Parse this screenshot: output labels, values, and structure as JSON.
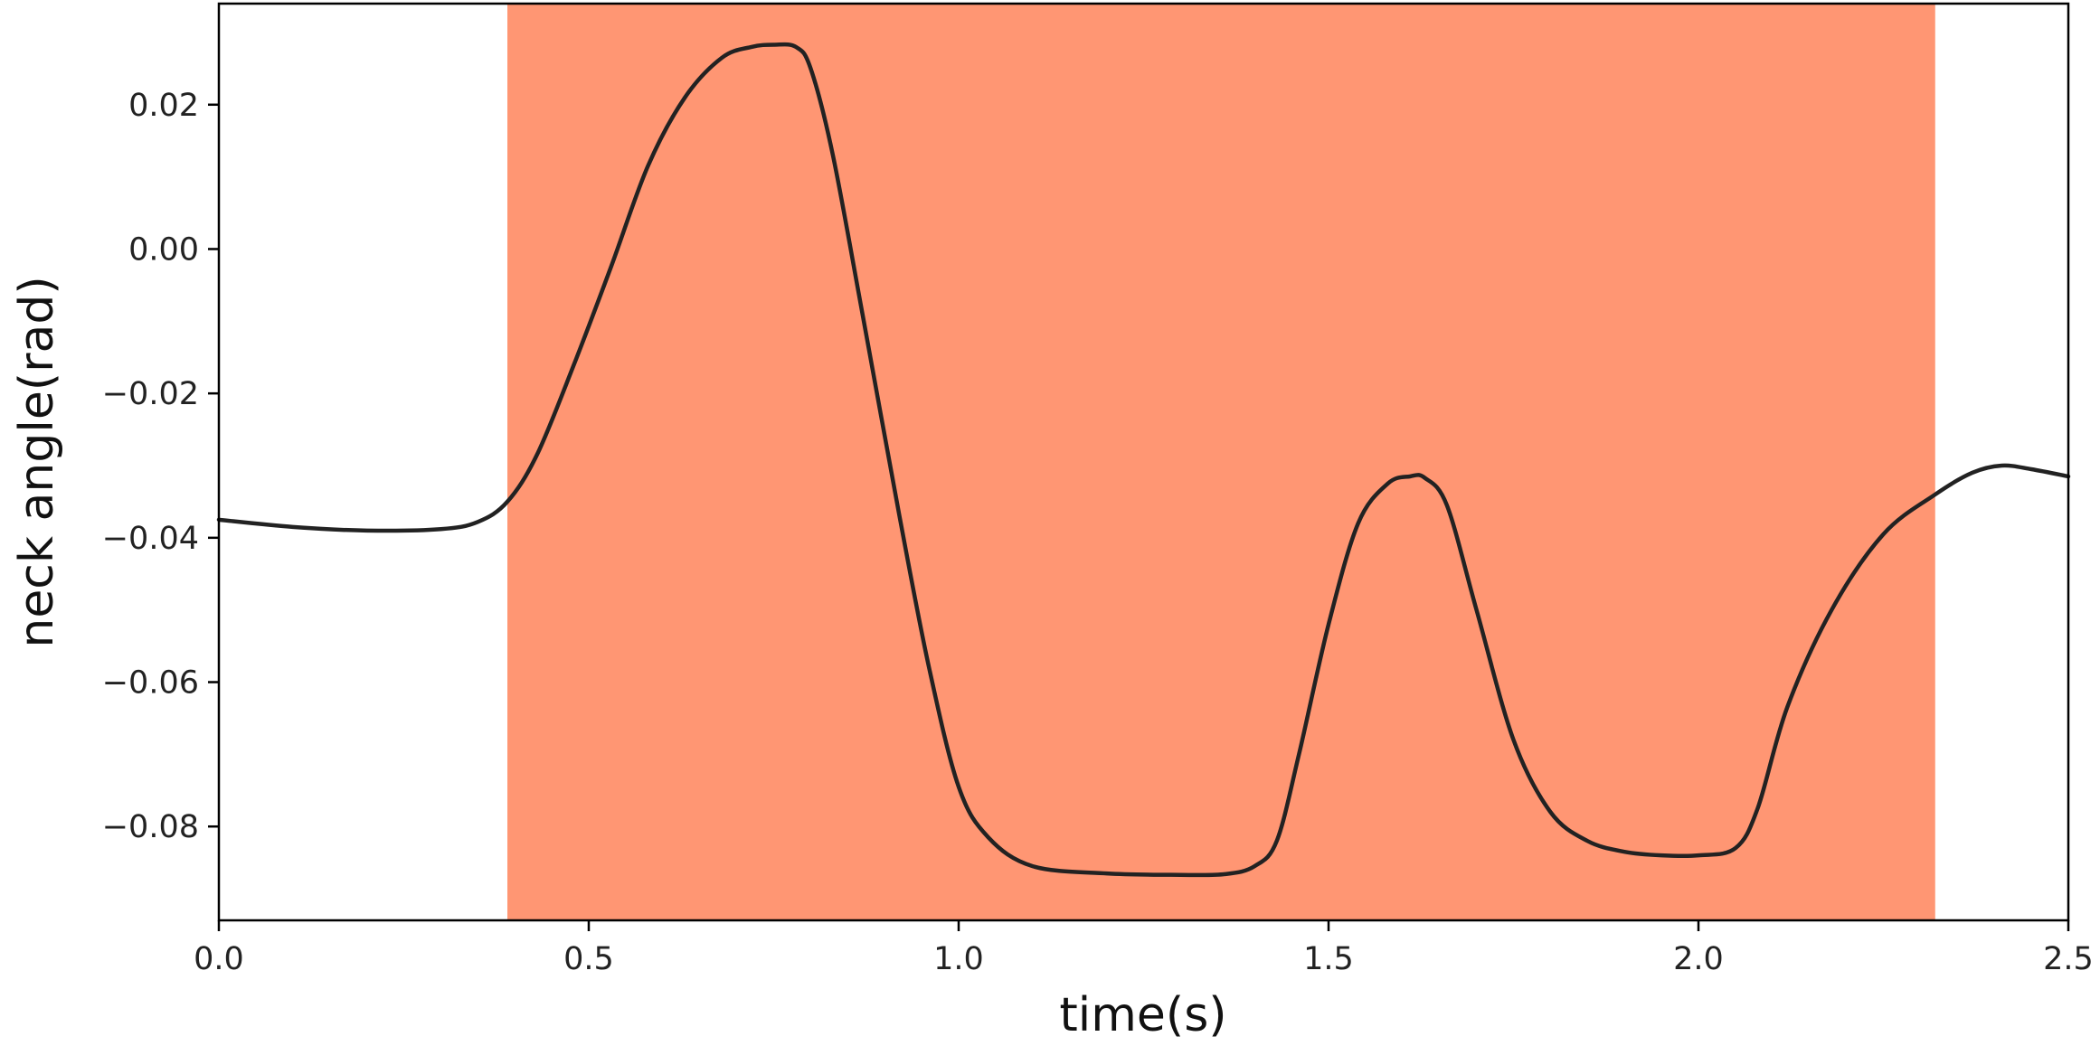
{
  "chart_data": {
    "type": "line",
    "xlabel": "time(s)",
    "ylabel": "neck angle(rad)",
    "xlim": [
      0.0,
      2.5
    ],
    "ylim": [
      -0.093,
      0.034
    ],
    "xticks": [
      0.0,
      0.5,
      1.0,
      1.5,
      2.0,
      2.5
    ],
    "xtick_labels": [
      "0.0",
      "0.5",
      "1.0",
      "1.5",
      "2.0",
      "2.5"
    ],
    "yticks": [
      0.02,
      0.0,
      -0.02,
      -0.04,
      -0.06,
      -0.08
    ],
    "ytick_labels": [
      "0.02",
      "0.00",
      "−0.02",
      "−0.04",
      "−0.06",
      "−0.08"
    ],
    "grid": false,
    "shaded_span": {
      "x_start": 0.39,
      "x_end": 2.32,
      "color": "#FF9673"
    },
    "series": [
      {
        "color": "#222222",
        "x": [
          0.0,
          0.1,
          0.2,
          0.3,
          0.35,
          0.39,
          0.43,
          0.48,
          0.53,
          0.58,
          0.63,
          0.68,
          0.72,
          0.75,
          0.78,
          0.8,
          0.83,
          0.87,
          0.92,
          0.96,
          1.0,
          1.04,
          1.1,
          1.2,
          1.3,
          1.36,
          1.4,
          1.43,
          1.46,
          1.5,
          1.54,
          1.58,
          1.61,
          1.63,
          1.66,
          1.7,
          1.75,
          1.8,
          1.85,
          1.9,
          1.95,
          2.0,
          2.05,
          2.08,
          2.12,
          2.18,
          2.25,
          2.32,
          2.37,
          2.41,
          2.45,
          2.5
        ],
        "y": [
          -0.0375,
          -0.0385,
          -0.039,
          -0.0388,
          -0.0378,
          -0.035,
          -0.0285,
          -0.016,
          -0.0025,
          0.0115,
          0.021,
          0.0265,
          0.028,
          0.0283,
          0.028,
          0.025,
          0.013,
          -0.009,
          -0.037,
          -0.058,
          -0.0745,
          -0.0815,
          -0.0855,
          -0.0865,
          -0.0867,
          -0.0866,
          -0.0855,
          -0.082,
          -0.07,
          -0.052,
          -0.038,
          -0.0325,
          -0.0315,
          -0.0317,
          -0.0355,
          -0.05,
          -0.068,
          -0.078,
          -0.082,
          -0.0835,
          -0.084,
          -0.084,
          -0.083,
          -0.0775,
          -0.0635,
          -0.05,
          -0.0395,
          -0.034,
          -0.031,
          -0.03,
          -0.0305,
          -0.0315
        ]
      }
    ]
  }
}
